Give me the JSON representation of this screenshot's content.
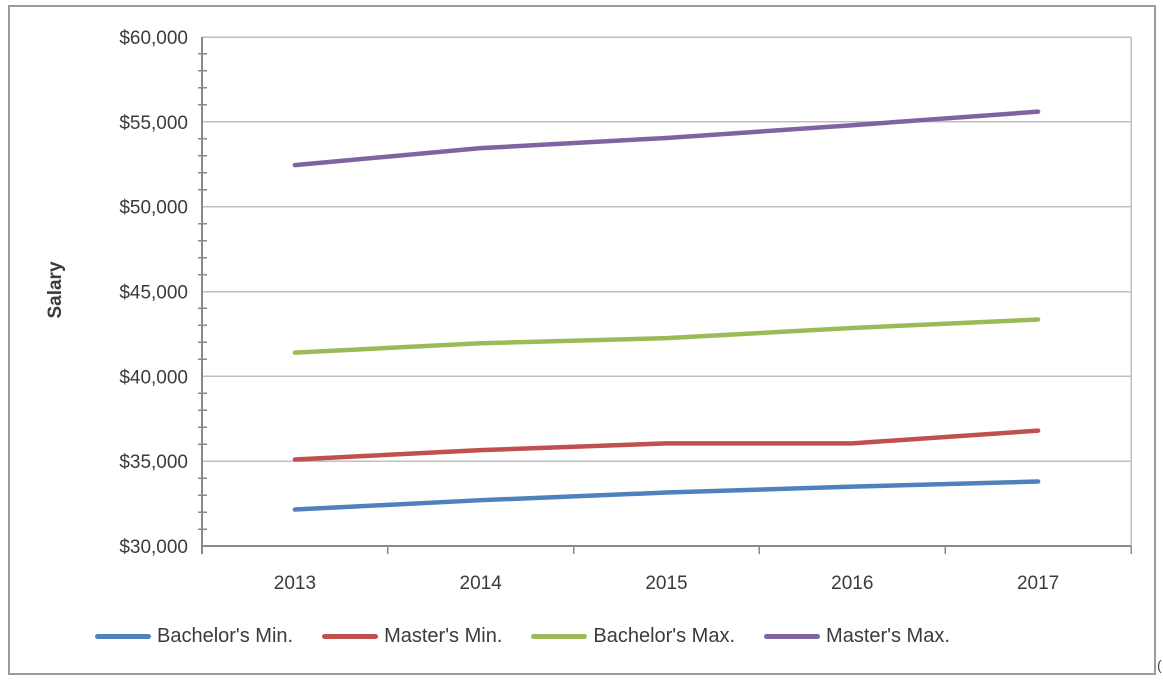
{
  "window": {
    "background_color": "#ffffff",
    "border_color": "#9b9b9b"
  },
  "chart_data": {
    "type": "line",
    "ylabel": "Salary",
    "xlabel": "",
    "categories": [
      "2013",
      "2014",
      "2015",
      "2016",
      "2017"
    ],
    "series": [
      {
        "name": "Bachelor's Min.",
        "color": "#4F81BD",
        "values": [
          32150,
          32700,
          33150,
          33500,
          33800
        ]
      },
      {
        "name": "Master's Min.",
        "color": "#C0504D",
        "values": [
          35100,
          35650,
          36050,
          36050,
          36800
        ]
      },
      {
        "name": "Bachelor's Max.",
        "color": "#9BBB59",
        "values": [
          41400,
          41950,
          42250,
          42850,
          43350
        ]
      },
      {
        "name": "Master's Max.",
        "color": "#8064A2",
        "values": [
          52450,
          53450,
          54050,
          54800,
          55600
        ]
      }
    ],
    "y_axis": {
      "min": 30000,
      "max": 60000,
      "major_step": 5000,
      "minor_step": 1000,
      "tick_labels": [
        "$30,000",
        "$35,000",
        "$40,000",
        "$45,000",
        "$50,000",
        "$55,000",
        "$60,000"
      ]
    },
    "legend_position": "bottom",
    "grid": "horizontal-major",
    "colors": {
      "gridline": "#bfbfbf",
      "axis": "#8a8a8a",
      "text": "#3b3b3b"
    }
  },
  "artifact": {
    "bottom_right_text": "("
  }
}
